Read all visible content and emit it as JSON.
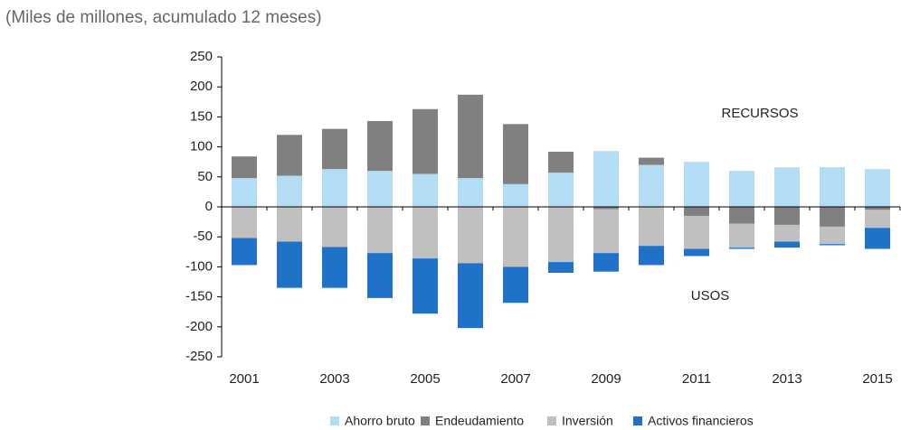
{
  "chart_data": {
    "type": "stacked_bar",
    "subtitle": "(Miles de millones, acumulado 12 meses)",
    "categories": [
      "2001",
      null,
      "2003",
      null,
      "2005",
      null,
      "2007",
      null,
      "2009",
      null,
      "2011",
      null,
      "2013",
      null,
      "2015"
    ],
    "series": [
      {
        "name": "Ahorro bruto",
        "color": "#b3dcf5",
        "values": [
          48,
          52,
          63,
          60,
          55,
          48,
          38,
          57,
          93,
          70,
          75,
          60,
          66,
          66,
          63
        ]
      },
      {
        "name": "Endeudamiento",
        "color": "#808080",
        "values": [
          36,
          68,
          67,
          83,
          108,
          139,
          100,
          35,
          -4,
          12,
          -15,
          -28,
          -30,
          -33,
          -5
        ]
      },
      {
        "name": "Inversión",
        "color": "#c0c0c0",
        "values": [
          -52,
          -58,
          -67,
          -77,
          -86,
          -94,
          -100,
          -92,
          -73,
          -65,
          -55,
          -40,
          -28,
          -29,
          -30
        ]
      },
      {
        "name": "Activos financieros",
        "color": "#2072c8",
        "values": [
          -45,
          -77,
          -68,
          -75,
          -92,
          -108,
          -60,
          -18,
          -31,
          -32,
          -12,
          -2,
          -10,
          -2,
          -35
        ]
      }
    ],
    "annotations": [
      "RECURSOS",
      "USOS"
    ],
    "ylim": [
      -250,
      250
    ],
    "yticks": [
      -250,
      -200,
      -150,
      -100,
      -50,
      0,
      50,
      100,
      150,
      200,
      250
    ],
    "legend": "bottom"
  }
}
